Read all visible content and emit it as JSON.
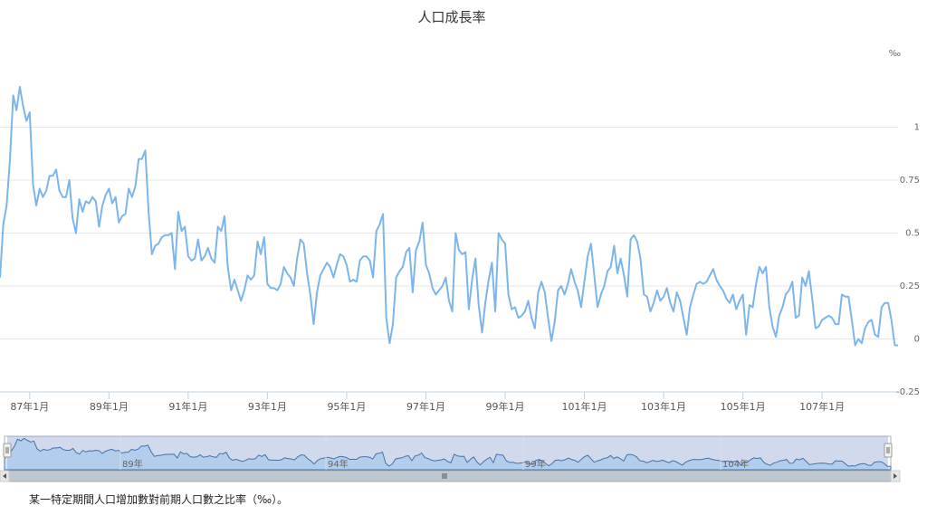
{
  "chart_data": {
    "type": "line",
    "title": "人口成長率",
    "unit": "‰",
    "ylim": [
      -0.25,
      1.25
    ],
    "yticks": [
      {
        "value": -0.25,
        "label": "-0.25"
      },
      {
        "value": 0,
        "label": "0"
      },
      {
        "value": 0.25,
        "label": "0.25"
      },
      {
        "value": 0.5,
        "label": "0.5"
      },
      {
        "value": 0.75,
        "label": "0.75"
      },
      {
        "value": 1,
        "label": "1"
      }
    ],
    "xticks": [
      "87年1月",
      "89年1月",
      "91年1月",
      "93年1月",
      "95年1月",
      "97年1月",
      "99年1月",
      "101年1月",
      "103年1月",
      "105年1月",
      "107年1月"
    ],
    "x_start": "86年4月",
    "grid": true,
    "legend": "none",
    "line_color": "#7cb5ec",
    "series": [
      {
        "values": [
          0.29,
          0.54,
          0.63,
          0.84,
          1.15,
          1.08,
          1.19,
          1.1,
          1.03,
          1.07,
          0.73,
          0.63,
          0.71,
          0.67,
          0.7,
          0.77,
          0.77,
          0.8,
          0.7,
          0.67,
          0.67,
          0.75,
          0.57,
          0.5,
          0.66,
          0.6,
          0.65,
          0.64,
          0.67,
          0.65,
          0.53,
          0.63,
          0.68,
          0.71,
          0.64,
          0.67,
          0.55,
          0.58,
          0.59,
          0.71,
          0.67,
          0.72,
          0.85,
          0.85,
          0.89,
          0.6,
          0.4,
          0.44,
          0.45,
          0.48,
          0.49,
          0.49,
          0.5,
          0.33,
          0.6,
          0.51,
          0.53,
          0.39,
          0.37,
          0.38,
          0.47,
          0.37,
          0.39,
          0.43,
          0.38,
          0.36,
          0.53,
          0.51,
          0.58,
          0.34,
          0.23,
          0.28,
          0.23,
          0.18,
          0.23,
          0.3,
          0.28,
          0.3,
          0.46,
          0.4,
          0.48,
          0.26,
          0.24,
          0.24,
          0.23,
          0.26,
          0.34,
          0.31,
          0.29,
          0.25,
          0.38,
          0.47,
          0.45,
          0.31,
          0.21,
          0.07,
          0.22,
          0.3,
          0.33,
          0.36,
          0.34,
          0.29,
          0.35,
          0.4,
          0.39,
          0.35,
          0.27,
          0.28,
          0.27,
          0.37,
          0.39,
          0.39,
          0.37,
          0.29,
          0.51,
          0.54,
          0.59,
          0.1,
          -0.02,
          0.07,
          0.29,
          0.32,
          0.34,
          0.41,
          0.43,
          0.22,
          0.42,
          0.46,
          0.55,
          0.35,
          0.31,
          0.24,
          0.21,
          0.23,
          0.25,
          0.29,
          0.18,
          0.13,
          0.5,
          0.42,
          0.4,
          0.41,
          0.14,
          0.28,
          0.38,
          0.16,
          0.03,
          0.17,
          0.28,
          0.36,
          0.13,
          0.5,
          0.47,
          0.45,
          0.21,
          0.14,
          0.15,
          0.1,
          0.11,
          0.13,
          0.18,
          0.1,
          0.05,
          0.22,
          0.27,
          0.22,
          0.1,
          -0.01,
          0.08,
          0.23,
          0.25,
          0.21,
          0.26,
          0.33,
          0.27,
          0.23,
          0.15,
          0.27,
          0.39,
          0.45,
          0.3,
          0.15,
          0.21,
          0.25,
          0.32,
          0.34,
          0.44,
          0.31,
          0.38,
          0.3,
          0.2,
          0.47,
          0.49,
          0.46,
          0.38,
          0.21,
          0.2,
          0.13,
          0.17,
          0.23,
          0.18,
          0.2,
          0.24,
          0.17,
          0.13,
          0.22,
          0.18,
          0.1,
          0.02,
          0.15,
          0.21,
          0.26,
          0.27,
          0.26,
          0.27,
          0.3,
          0.33,
          0.28,
          0.25,
          0.23,
          0.19,
          0.17,
          0.21,
          0.14,
          0.18,
          0.21,
          0.02,
          0.16,
          0.15,
          0.26,
          0.34,
          0.31,
          0.34,
          0.15,
          0.06,
          0.01,
          0.11,
          0.15,
          0.21,
          0.23,
          0.27,
          0.1,
          0.11,
          0.29,
          0.25,
          0.32,
          0.19,
          0.05,
          0.06,
          0.09,
          0.1,
          0.11,
          0.1,
          0.07,
          0.07,
          0.21,
          0.2,
          0.2,
          0.09,
          -0.03,
          0.0,
          -0.02,
          0.05,
          0.08,
          0.09,
          0.02,
          0.01,
          0.15,
          0.17,
          0.17,
          0.09,
          -0.03,
          -0.03
        ]
      }
    ]
  },
  "navigator": {
    "labels": [
      "89年",
      "94年",
      "99年",
      "104年"
    ]
  },
  "footnote": "某一特定期間人口增加數對前期人口數之比率（‰）。"
}
